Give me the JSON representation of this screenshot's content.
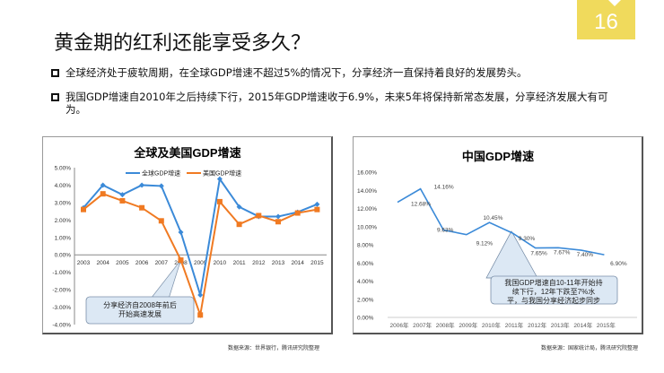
{
  "page_number": "16",
  "title": "黄金期的红利还能享受多久？",
  "bullets": [
    "全球经济处于疲软周期，在全球GDP增速不超过5%的情况下，分享经济一直保持着良好的发展势头。",
    "我国GDP增速自2010年之后持续下行，2015年GDP增速收于6.9%，未来5年将保持新常态发展，分享经济发展大有可为。"
  ],
  "sources": [
    "数据来源：世界银行，腾讯研究院整理",
    "数据来源：国家统计局，腾讯研究院整理"
  ],
  "colors": {
    "badge": "#f0da5c",
    "global": "#3b8ad8",
    "us": "#f07a22",
    "china": "#3b8ad8"
  },
  "chart_data": [
    {
      "type": "line",
      "title": "全球及美国GDP增速",
      "categories": [
        "2003",
        "2004",
        "2005",
        "2006",
        "2007",
        "2008",
        "2009",
        "2010",
        "2011",
        "2012",
        "2013",
        "2014",
        "2015"
      ],
      "series": [
        {
          "name": "全球GDP增速",
          "values": [
            2.7,
            4.0,
            3.45,
            4.0,
            3.95,
            1.3,
            -2.3,
            4.35,
            2.75,
            2.2,
            2.2,
            2.45,
            2.9
          ]
        },
        {
          "name": "美国GDP增速",
          "values": [
            2.6,
            3.5,
            3.1,
            2.7,
            1.95,
            -0.3,
            -3.45,
            3.05,
            1.75,
            2.25,
            1.9,
            2.4,
            2.6
          ]
        }
      ],
      "yticks": [
        "5.00%",
        "4.00%",
        "3.00%",
        "2.00%",
        "1.00%",
        "0.00%",
        "-1.00%",
        "-2.00%",
        "-3.00%",
        "-4.00%"
      ],
      "ylim": [
        -4,
        5
      ],
      "legend": "top",
      "annotation": "分享经济自2008年前后开始高速发展"
    },
    {
      "type": "line",
      "title": "中国GDP增速",
      "categories": [
        "2006年",
        "2007年",
        "2008年",
        "2009年",
        "2010年",
        "2011年",
        "2012年",
        "2013年",
        "2014年",
        "2015年"
      ],
      "series": [
        {
          "name": "中国GDP增速",
          "values": [
            12.68,
            14.16,
            9.63,
            9.12,
            10.45,
            9.3,
            7.65,
            7.67,
            7.4,
            6.9
          ]
        }
      ],
      "data_labels": [
        "12.68%",
        "14.16%",
        "9.63%",
        "9.12%",
        "10.45%",
        "9.30%",
        "7.65%",
        "7.67%",
        "7.40%",
        "6.90%"
      ],
      "yticks": [
        "16.00%",
        "14.00%",
        "12.00%",
        "10.00%",
        "8.00%",
        "6.00%",
        "4.00%",
        "2.00%",
        "0.00%"
      ],
      "ylim": [
        0,
        16
      ],
      "annotation": "我国GDP增速自10-11年开始持续下行，12年下跌至7%水平，与我国分享经济起步同步"
    }
  ]
}
